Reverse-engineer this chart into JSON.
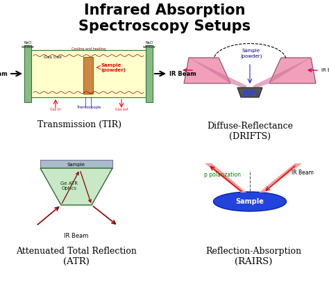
{
  "title_line1": "Infrared Absorption",
  "title_line2": "Spectroscopy Setups",
  "title_fontsize": 15,
  "bg_color": "#ffffff",
  "label_tir": "Transmission (TIR)",
  "label_drifts_line1": "Diffuse-Reflectance",
  "label_drifts_line2": "(DRIFTS)",
  "label_atr_line1": "Attenuated Total Reflection",
  "label_atr_line2": "(ATR)",
  "label_rairs_line1": "Reflection-Absorption",
  "label_rairs_line2": "(RAIRS)"
}
